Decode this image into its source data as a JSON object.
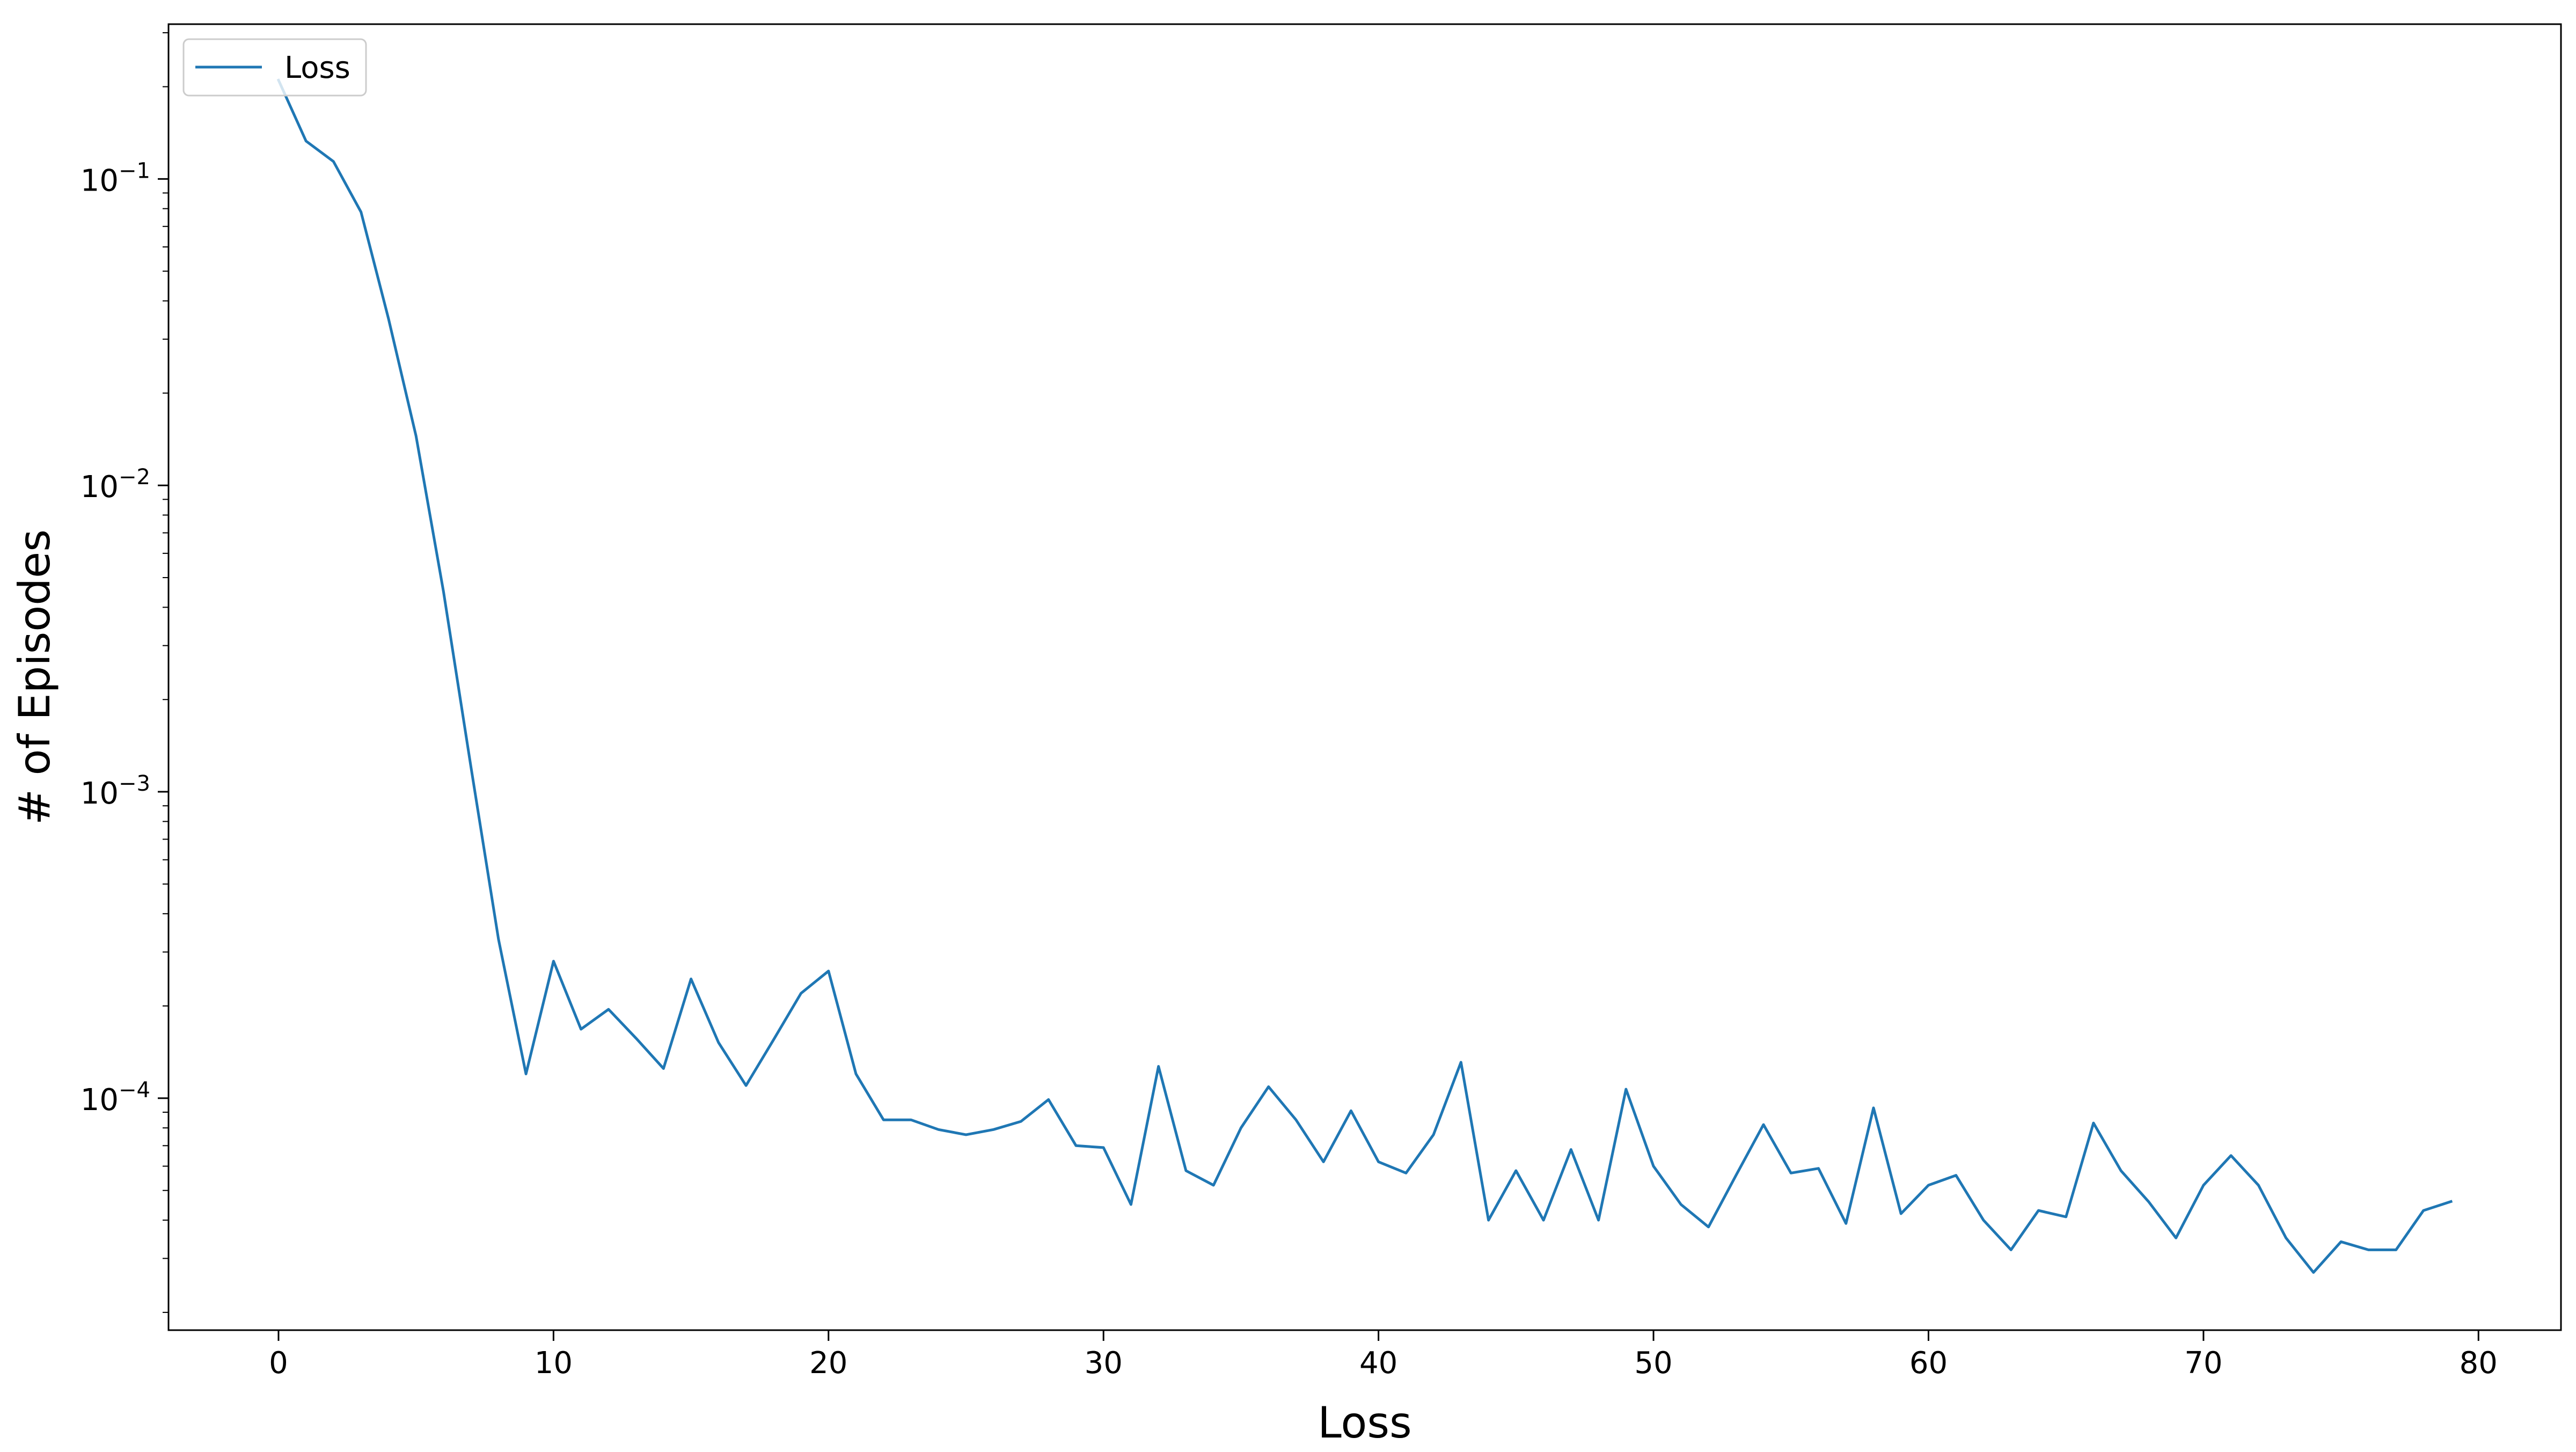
{
  "chart_data": {
    "type": "line",
    "title": "",
    "xlabel": "Loss",
    "ylabel": "# of Episodes",
    "xlim": [
      -4,
      83
    ],
    "ylim": [
      1.75e-05,
      0.32
    ],
    "yscale": "log",
    "grid": false,
    "legend_position": "top-left",
    "x_ticks": [
      0,
      10,
      20,
      30,
      40,
      50,
      60,
      70,
      80
    ],
    "x_tick_labels": [
      "0",
      "10",
      "20",
      "30",
      "40",
      "50",
      "60",
      "70",
      "80"
    ],
    "y_ticks": [
      {
        "value": 0.1,
        "base": "10",
        "exp": "−1"
      },
      {
        "value": 0.01,
        "base": "10",
        "exp": "−2"
      },
      {
        "value": 0.001,
        "base": "10",
        "exp": "−3"
      },
      {
        "value": 0.0001,
        "base": "10",
        "exp": "−4"
      }
    ],
    "series": [
      {
        "name": "Loss",
        "color": "#1f77b4",
        "x": [
          0,
          1,
          2,
          3,
          4,
          5,
          6,
          7,
          8,
          9,
          10,
          11,
          12,
          13,
          14,
          15,
          16,
          17,
          18,
          19,
          20,
          21,
          22,
          23,
          24,
          25,
          26,
          27,
          28,
          29,
          30,
          31,
          32,
          33,
          34,
          35,
          36,
          37,
          38,
          39,
          40,
          41,
          42,
          43,
          44,
          45,
          46,
          47,
          48,
          49,
          50,
          51,
          52,
          53,
          54,
          55,
          56,
          57,
          58,
          59,
          60,
          61,
          62,
          63,
          64,
          65,
          66,
          67,
          68,
          69,
          70,
          71,
          72,
          73,
          74,
          75,
          76,
          77,
          78,
          79
        ],
        "y": [
          0.21,
          0.133,
          0.114,
          0.078,
          0.035,
          0.0145,
          0.0045,
          0.0012,
          0.00033,
          0.00012,
          0.00028,
          0.000168,
          0.000195,
          0.000157,
          0.000125,
          0.000245,
          0.000152,
          0.00011,
          0.000155,
          0.00022,
          0.00026,
          0.00012,
          8.5e-05,
          8.5e-05,
          7.9e-05,
          7.6e-05,
          7.9e-05,
          8.4e-05,
          9.9e-05,
          7e-05,
          6.9e-05,
          4.5e-05,
          0.000127,
          5.8e-05,
          5.2e-05,
          8e-05,
          0.000109,
          8.5e-05,
          6.2e-05,
          9.1e-05,
          6.2e-05,
          5.7e-05,
          7.6e-05,
          0.000131,
          4e-05,
          5.8e-05,
          4e-05,
          6.8e-05,
          4e-05,
          0.000107,
          6e-05,
          4.5e-05,
          3.8e-05,
          5.6e-05,
          8.2e-05,
          5.7e-05,
          5.9e-05,
          3.9e-05,
          9.3e-05,
          4.2e-05,
          5.2e-05,
          5.6e-05,
          4e-05,
          3.2e-05,
          4.3e-05,
          4.1e-05,
          8.3e-05,
          5.8e-05,
          4.6e-05,
          3.5e-05,
          5.2e-05,
          6.5e-05,
          5.2e-05,
          3.5e-05,
          2.7e-05,
          3.4e-05,
          3.2e-05,
          3.2e-05,
          4.3e-05,
          4.6e-05
        ]
      }
    ]
  }
}
